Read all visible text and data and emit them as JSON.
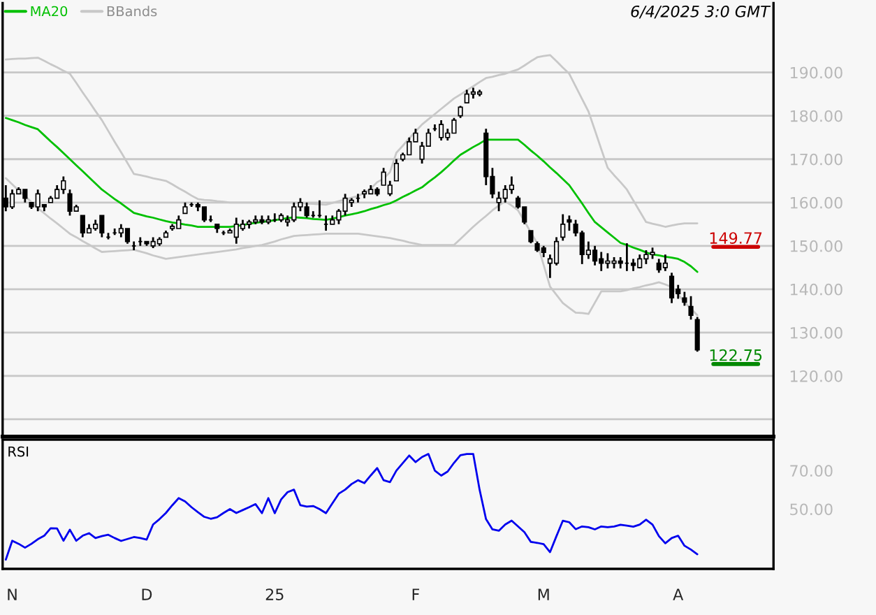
{
  "chart_data": [
    {
      "type": "candlestick",
      "color": "#000000",
      "categories": [
        null,
        null,
        null,
        null,
        null,
        null,
        null,
        null,
        null,
        null,
        null,
        null,
        null,
        null,
        null,
        null,
        null,
        null,
        null,
        null,
        null,
        null,
        null,
        null,
        null,
        null,
        null,
        null,
        null,
        null,
        null,
        null,
        null,
        null,
        null,
        null,
        null,
        null,
        null,
        null,
        null,
        null,
        null,
        null,
        null,
        null,
        null,
        null,
        null,
        null,
        null,
        null,
        null,
        null,
        null,
        null,
        null,
        null,
        null,
        null,
        null,
        null,
        null,
        null,
        null,
        null,
        null,
        null,
        null,
        null,
        null,
        null,
        null,
        null,
        null,
        null,
        null,
        null,
        null,
        null,
        null,
        null,
        null,
        null,
        null,
        null,
        null,
        null,
        null,
        null,
        null,
        null,
        null,
        null,
        null,
        null,
        null,
        null,
        null,
        null,
        null,
        null,
        null,
        null,
        null,
        null,
        null,
        null,
        null
      ],
      "ohlc": [
        [
          161,
          164,
          158,
          159
        ],
        [
          159,
          163,
          158.5,
          162
        ],
        [
          162,
          163.5,
          162,
          163
        ],
        [
          163,
          163,
          160,
          161
        ],
        [
          160,
          160,
          158.5,
          159
        ],
        [
          159,
          163,
          158,
          162
        ],
        [
          159.5,
          159.5,
          158,
          159
        ],
        [
          160,
          161.5,
          160,
          161
        ],
        [
          161,
          164,
          161,
          163
        ],
        [
          163,
          166,
          162,
          165
        ],
        [
          162,
          163,
          157,
          158
        ],
        [
          158,
          159.5,
          158,
          159
        ],
        [
          157,
          157,
          152,
          153
        ],
        [
          153,
          155,
          153,
          154
        ],
        [
          154,
          156,
          153.5,
          155
        ],
        [
          157,
          157,
          152,
          153
        ],
        [
          152,
          153,
          151.5,
          152
        ],
        [
          153,
          154,
          152.5,
          153
        ],
        [
          153,
          155,
          152,
          154
        ],
        [
          154,
          154,
          150.5,
          151
        ],
        [
          150,
          151,
          149,
          150
        ],
        [
          151,
          152,
          150,
          151
        ],
        [
          151,
          151,
          150,
          150.5
        ],
        [
          150,
          152,
          149.5,
          151
        ],
        [
          150.5,
          152,
          150,
          151.5
        ],
        [
          152,
          153.5,
          152,
          153
        ],
        [
          154,
          155,
          153.5,
          154.5
        ],
        [
          154,
          157,
          154,
          156
        ],
        [
          157.5,
          160,
          157.5,
          159
        ],
        [
          159.5,
          160,
          159,
          159.5
        ],
        [
          159.5,
          160,
          158,
          159
        ],
        [
          159,
          159,
          155.5,
          156
        ],
        [
          156,
          157,
          155.5,
          156
        ],
        [
          155,
          155,
          153,
          154
        ],
        [
          153,
          153.5,
          152.5,
          153
        ],
        [
          153,
          154,
          153,
          153.5
        ],
        [
          152,
          156.5,
          150.5,
          155
        ],
        [
          154,
          156,
          153.5,
          155
        ],
        [
          155,
          156,
          154,
          155.5
        ],
        [
          155.5,
          157,
          155,
          156
        ],
        [
          156,
          157,
          155,
          155.5
        ],
        [
          155.5,
          157,
          155,
          156
        ],
        [
          156,
          157.5,
          155.5,
          156
        ],
        [
          156,
          157.5,
          155.5,
          157
        ],
        [
          155.5,
          157,
          154.5,
          156
        ],
        [
          156,
          160,
          155.5,
          159
        ],
        [
          159,
          161,
          158,
          160
        ],
        [
          159,
          160,
          156.5,
          157
        ],
        [
          157,
          158,
          156.5,
          157
        ],
        [
          157,
          160.5,
          156.5,
          157
        ],
        [
          155,
          157,
          153.5,
          155
        ],
        [
          155,
          157,
          155,
          156
        ],
        [
          156,
          158.5,
          155,
          158
        ],
        [
          158,
          162,
          157,
          161
        ],
        [
          160,
          161,
          159,
          160.5
        ],
        [
          161,
          162,
          160,
          161
        ],
        [
          162,
          163,
          161,
          162.5
        ],
        [
          162,
          164,
          162,
          163
        ],
        [
          163,
          163.5,
          161.5,
          162
        ],
        [
          164,
          168,
          164,
          167
        ],
        [
          162,
          165,
          161.5,
          164
        ],
        [
          165,
          170,
          165,
          169
        ],
        [
          170,
          171.5,
          169.5,
          171
        ],
        [
          171,
          175,
          171,
          174
        ],
        [
          174,
          177,
          174,
          176
        ],
        [
          170,
          174,
          169,
          173
        ],
        [
          173,
          177,
          173,
          176
        ],
        [
          177,
          178,
          176.5,
          177
        ],
        [
          175,
          179,
          174.3,
          178
        ],
        [
          175,
          177,
          174.3,
          176
        ],
        [
          176,
          179.5,
          176,
          179
        ],
        [
          180,
          182.3,
          179.5,
          182
        ],
        [
          183,
          186,
          183,
          185
        ],
        [
          185,
          186.5,
          184,
          185.5
        ],
        [
          185,
          186,
          184.5,
          185.5
        ],
        [
          176,
          177,
          164,
          166
        ],
        [
          166,
          168,
          161,
          162
        ],
        [
          160,
          162.5,
          158,
          161
        ],
        [
          161,
          164,
          160,
          163
        ],
        [
          163,
          166,
          162,
          164
        ],
        [
          161,
          161.5,
          158.6,
          159
        ],
        [
          159,
          159,
          155,
          155.5
        ],
        [
          153.5,
          153.5,
          150.6,
          151
        ],
        [
          150.5,
          151,
          148.6,
          149
        ],
        [
          149.5,
          150,
          147.4,
          148.5
        ],
        [
          146,
          148,
          142.6,
          147
        ],
        [
          146,
          152,
          145.5,
          151
        ],
        [
          152,
          157.3,
          151.2,
          155
        ],
        [
          156,
          157,
          153.5,
          155.5
        ],
        [
          155,
          156,
          152.2,
          153
        ],
        [
          153,
          153.5,
          145.8,
          148
        ],
        [
          148,
          151,
          147,
          149
        ],
        [
          149,
          150,
          145.5,
          146.5
        ],
        [
          147,
          148.6,
          144.2,
          146
        ],
        [
          146,
          148.3,
          144.8,
          146.5
        ],
        [
          146,
          147.4,
          144.8,
          146.5
        ],
        [
          146.5,
          147.4,
          144.8,
          146
        ],
        [
          146,
          150.6,
          144.2,
          146
        ],
        [
          146,
          147,
          144.2,
          145.5
        ],
        [
          145,
          148,
          144.8,
          147
        ],
        [
          147,
          149,
          145.8,
          148
        ],
        [
          148,
          149.6,
          147,
          148.5
        ],
        [
          146,
          147,
          143.8,
          144.5
        ],
        [
          145,
          148,
          144.2,
          146
        ],
        [
          143,
          143.8,
          136.8,
          138
        ],
        [
          140,
          141,
          137.8,
          139
        ],
        [
          138,
          139.4,
          136.2,
          137
        ],
        [
          136,
          138.4,
          133,
          134
        ],
        [
          133,
          133.6,
          125.6,
          126
        ]
      ],
      "series": [
        {
          "name": "MA20",
          "type": "line",
          "color": "#00c000",
          "values": [
            179.5,
            179,
            178.5,
            177.9,
            177.4,
            176.9,
            175.5,
            174.1,
            172.8,
            171.4,
            170,
            168.6,
            167.2,
            165.8,
            164.4,
            163,
            161.9,
            160.8,
            159.8,
            158.7,
            157.6,
            157.2,
            156.8,
            156.5,
            156.1,
            155.7,
            155.4,
            155.2,
            154.9,
            154.7,
            154.4,
            154.4,
            154.4,
            154.4,
            154.4,
            154.4,
            154.6,
            154.8,
            155.1,
            155.3,
            155.5,
            155.7,
            155.9,
            156.2,
            156.4,
            156.6,
            156.5,
            156.4,
            156.2,
            156.1,
            156,
            156.3,
            156.6,
            157,
            157.3,
            157.6,
            158,
            158.5,
            158.9,
            159.4,
            159.8,
            160.5,
            161.3,
            162,
            162.8,
            163.5,
            164.7,
            165.8,
            167,
            168.3,
            169.7,
            171,
            171.9,
            172.8,
            173.6,
            174.5,
            174.5,
            174.5,
            174.5,
            174.5,
            174.5,
            173.3,
            172,
            170.8,
            169.5,
            168.1,
            166.8,
            165.4,
            164,
            161.9,
            159.8,
            157.6,
            155.5,
            154.3,
            153.1,
            151.9,
            150.7,
            150.2,
            149.6,
            149.1,
            148.5,
            148,
            147.8,
            147.5,
            147.3,
            147,
            146.3,
            145.3,
            144
          ]
        },
        {
          "name": "BBands",
          "type": "line",
          "color": "#c8c8c8",
          "values": [
            193,
            193.1,
            193.2,
            193.2,
            193.3,
            193.4,
            192.7,
            191.9,
            191.2,
            190.4,
            189.7,
            187.6,
            185.4,
            183.3,
            181.1,
            179,
            176.5,
            174,
            171.6,
            169.1,
            166.6,
            166.3,
            166,
            165.6,
            165.3,
            165,
            164.2,
            163.3,
            162.5,
            161.6,
            160.8,
            160.6,
            160.5,
            160.3,
            160.2,
            160,
            160,
            160,
            160,
            160,
            160,
            160,
            160,
            160,
            160,
            160,
            159.9,
            159.8,
            159.7,
            159.6,
            159.5,
            159.9,
            160.3,
            160.7,
            161.1,
            161.5,
            162.3,
            163.2,
            164.7,
            165.5,
            167,
            171.5,
            173.1,
            174.8,
            176.4,
            178,
            179.2,
            180.4,
            181.6,
            182.8,
            184,
            184.9,
            185.9,
            186.8,
            187.8,
            188.7,
            189,
            189.4,
            189.7,
            190.2,
            190.7,
            191.6,
            192.6,
            193.5,
            193.8,
            194,
            192.6,
            191.1,
            189.7,
            186.8,
            183.9,
            181,
            176.7,
            172.3,
            168,
            166.3,
            164.7,
            163,
            160.5,
            158,
            155.5,
            155.1,
            154.8,
            154.4,
            154.7,
            155,
            155.2,
            155.2,
            155.2
          ]
        },
        {
          "type": "line",
          "color": "#c8c8c8",
          "values": [
            165.6,
            164.2,
            162.8,
            161.5,
            160.1,
            158.7,
            157.5,
            156.3,
            155.2,
            154,
            152.8,
            152,
            151.1,
            150.3,
            149.4,
            148.6,
            148.7,
            148.8,
            148.9,
            149,
            149.1,
            148.7,
            148.3,
            147.8,
            147.4,
            147,
            147.2,
            147.4,
            147.6,
            147.8,
            148,
            148.2,
            148.4,
            148.6,
            148.8,
            149,
            149.2,
            149.5,
            149.7,
            150,
            150.2,
            150.6,
            151,
            151.5,
            151.9,
            152.3,
            152.4,
            152.5,
            152.6,
            152.7,
            152.8,
            152.8,
            152.8,
            152.8,
            152.8,
            152.8,
            152.6,
            152.4,
            152.2,
            152,
            151.8,
            151.5,
            151.2,
            150.8,
            150.5,
            150.2,
            150.2,
            150.2,
            150.2,
            150.2,
            150.2,
            151.6,
            153,
            154.4,
            155.7,
            156.9,
            158.2,
            159.3,
            160.3,
            159.3,
            158.2,
            155.7,
            153.1,
            150.6,
            145.6,
            140.6,
            138.7,
            136.8,
            135.7,
            134.6,
            134.5,
            134.3,
            136.9,
            139.5,
            139.5,
            139.5,
            139.5,
            139.8,
            140.2,
            140.5,
            140.9,
            141.2,
            141.6,
            141.1,
            140.5,
            138.8,
            137,
            135.5,
            134
          ]
        }
      ],
      "ylim": [
        106,
        206
      ],
      "yticks": [
        {
          "value": 110,
          "label": null
        },
        {
          "value": 120,
          "label": "120.00"
        },
        {
          "value": 130,
          "label": "130.00"
        },
        {
          "value": 140,
          "label": "140.00"
        },
        {
          "value": 150,
          "label": "150.00"
        },
        {
          "value": 160,
          "label": "160.00"
        },
        {
          "value": 170,
          "label": "170.00"
        },
        {
          "value": 180,
          "label": "180.00"
        },
        {
          "value": 190,
          "label": "190.00"
        }
      ],
      "grid": "y",
      "legend": "top left",
      "tick_labels": "y",
      "ref_lines": [
        {
          "axis": "y",
          "value": 149.77,
          "label": "149.77",
          "color": "#cc0000"
        },
        {
          "axis": "y",
          "value": 122.75,
          "label": "122.75",
          "color": "#008800"
        }
      ],
      "annotations": [
        "6/4/2025 3:0 GMT"
      ]
    },
    {
      "type": "line",
      "title": "RSI",
      "categories": [
        null,
        "N",
        null,
        null,
        null,
        null,
        null,
        null,
        null,
        null,
        null,
        null,
        null,
        null,
        null,
        null,
        null,
        null,
        null,
        null,
        null,
        null,
        "D",
        null,
        null,
        null,
        null,
        null,
        null,
        null,
        null,
        null,
        null,
        null,
        null,
        null,
        null,
        null,
        null,
        null,
        null,
        null,
        "25",
        null,
        null,
        null,
        null,
        null,
        null,
        null,
        null,
        null,
        null,
        null,
        null,
        null,
        null,
        null,
        null,
        null,
        null,
        null,
        null,
        null,
        "F",
        null,
        null,
        null,
        null,
        null,
        null,
        null,
        null,
        null,
        null,
        null,
        null,
        null,
        null,
        null,
        null,
        null,
        null,
        null,
        "M",
        null,
        null,
        null,
        null,
        null,
        null,
        null,
        null,
        null,
        null,
        null,
        null,
        null,
        null,
        null,
        null,
        null,
        null,
        null,
        null,
        "A",
        null,
        null,
        null
      ],
      "series": [
        {
          "color": "#0000ee",
          "values": [
            23.8,
            33.6,
            32,
            30,
            32,
            34.4,
            36.2,
            40.1,
            40,
            33.6,
            39.3,
            33.6,
            36.2,
            37.5,
            35,
            36,
            36.7,
            35,
            33.5,
            34.5,
            35.5,
            35,
            34.2,
            42,
            44.8,
            48,
            52,
            55.7,
            54,
            51,
            48.4,
            46,
            45,
            45.8,
            48,
            50,
            48,
            49.5,
            51,
            52.6,
            47.9,
            55.7,
            47.9,
            55,
            58.8,
            60.1,
            52,
            51.3,
            51.6,
            50,
            47.9,
            53,
            58,
            60.1,
            63,
            65,
            63.5,
            67.5,
            71.3,
            65,
            64,
            70,
            73.9,
            77.8,
            74.4,
            77,
            78.6,
            70,
            67.4,
            69.5,
            74,
            78,
            78.6,
            78.6,
            60,
            44.8,
            39.5,
            38.8,
            42,
            44,
            41,
            38,
            33,
            32.5,
            31.8,
            27.7,
            36,
            44,
            43.2,
            39.6,
            41,
            40.6,
            39.5,
            41,
            40.6,
            41,
            41.9,
            41.4,
            40.9,
            42,
            44.5,
            42,
            36,
            32.3,
            35,
            36.2,
            31,
            29,
            26.6
          ]
        }
      ],
      "ylim": [
        19,
        86
      ],
      "yticks": [
        {
          "value": 50,
          "label": "50.00"
        },
        {
          "value": 70,
          "label": "70.00"
        }
      ]
    }
  ]
}
